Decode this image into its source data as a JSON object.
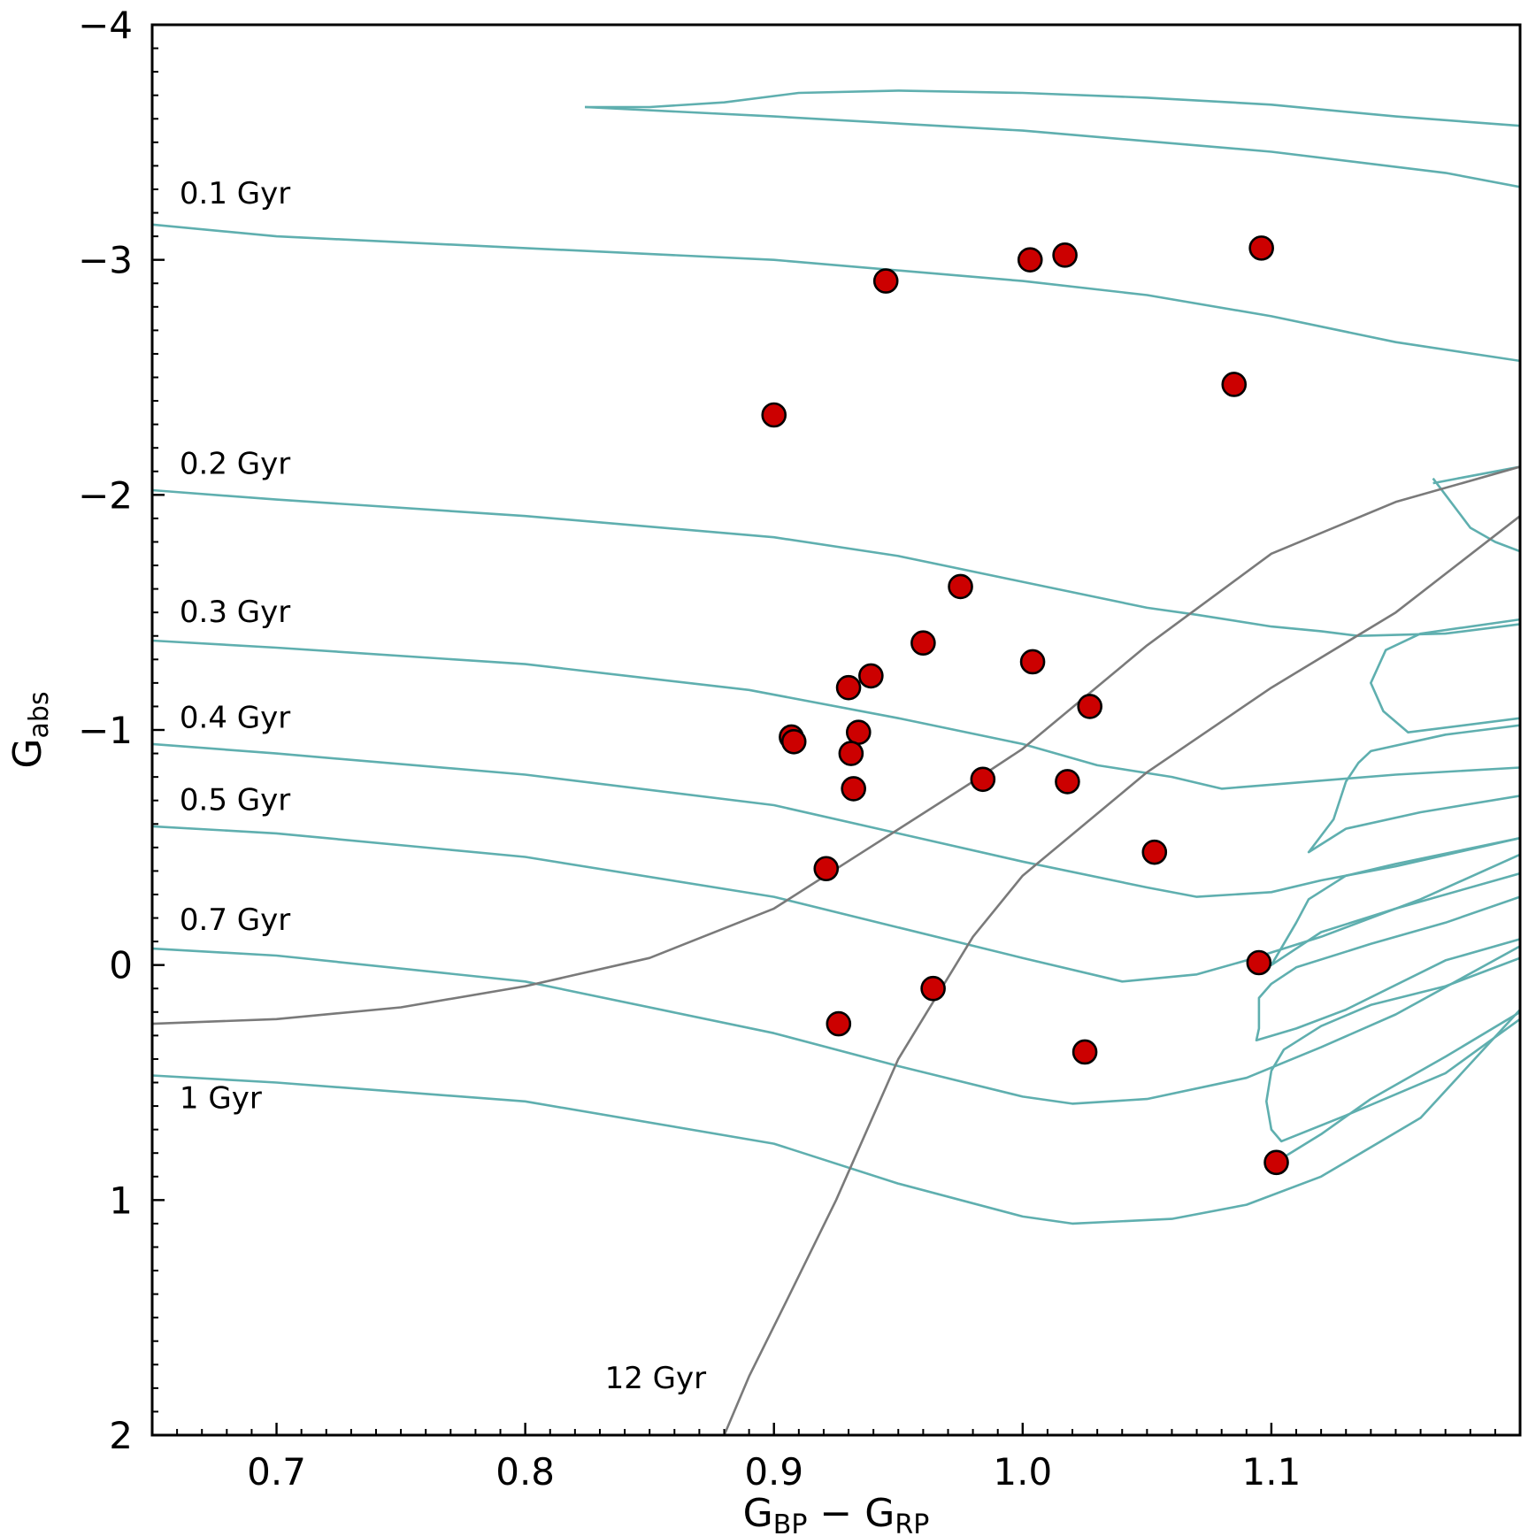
{
  "chart_data": {
    "type": "scatter",
    "title": "",
    "xlabel": {
      "main1": "G",
      "sub1": "BP",
      "minus": " − ",
      "main2": "G",
      "sub2": "RP"
    },
    "ylabel": {
      "main": "G",
      "sub": "abs"
    },
    "xlim": [
      0.65,
      1.2
    ],
    "ylim": [
      2,
      -4
    ],
    "y_inverted": true,
    "x_ticks": [
      0.7,
      0.8,
      0.9,
      1.0,
      1.1
    ],
    "x_tick_labels": [
      "0.7",
      "0.8",
      "0.9",
      "1.0",
      "1.1"
    ],
    "y_ticks": [
      -4,
      -3,
      -2,
      -1,
      0,
      1,
      2
    ],
    "y_tick_labels": [
      "−4",
      "−3",
      "−2",
      "−1",
      "0",
      "1",
      "2"
    ],
    "colors": {
      "isochrone": "#5fafaf",
      "old_isochrone": "#7a7a7a",
      "points": "#cc0000",
      "point_edge": "#000000"
    },
    "points": [
      {
        "x": 0.945,
        "y": -2.91
      },
      {
        "x": 1.003,
        "y": -3.0
      },
      {
        "x": 1.017,
        "y": -3.02
      },
      {
        "x": 1.096,
        "y": -3.05
      },
      {
        "x": 0.9,
        "y": -2.34
      },
      {
        "x": 1.085,
        "y": -2.47
      },
      {
        "x": 0.975,
        "y": -1.61
      },
      {
        "x": 0.96,
        "y": -1.37
      },
      {
        "x": 1.004,
        "y": -1.29
      },
      {
        "x": 0.939,
        "y": -1.23
      },
      {
        "x": 0.93,
        "y": -1.18
      },
      {
        "x": 1.027,
        "y": -1.1
      },
      {
        "x": 0.934,
        "y": -0.99
      },
      {
        "x": 0.907,
        "y": -0.97
      },
      {
        "x": 0.908,
        "y": -0.95
      },
      {
        "x": 0.931,
        "y": -0.9
      },
      {
        "x": 0.984,
        "y": -0.79
      },
      {
        "x": 1.018,
        "y": -0.78
      },
      {
        "x": 0.932,
        "y": -0.75
      },
      {
        "x": 1.053,
        "y": -0.48
      },
      {
        "x": 0.921,
        "y": -0.41
      },
      {
        "x": 1.095,
        "y": -0.01
      },
      {
        "x": 0.964,
        "y": 0.1
      },
      {
        "x": 0.926,
        "y": 0.25
      },
      {
        "x": 1.025,
        "y": 0.37
      },
      {
        "x": 1.102,
        "y": 0.84
      }
    ],
    "isochrones": [
      {
        "label": "0.1 Gyr",
        "label_pos": [
          0.661,
          -3.24
        ],
        "segments": [
          [
            [
              0.65,
              -3.15
            ],
            [
              0.7,
              -3.1
            ],
            [
              0.8,
              -3.05
            ],
            [
              0.9,
              -3.0
            ],
            [
              1.0,
              -2.91
            ],
            [
              1.05,
              -2.85
            ],
            [
              1.1,
              -2.76
            ],
            [
              1.15,
              -2.65
            ],
            [
              1.2,
              -2.57
            ]
          ],
          [
            [
              0.824,
              -3.65
            ],
            [
              0.85,
              -3.65
            ],
            [
              0.88,
              -3.67
            ],
            [
              0.91,
              -3.71
            ],
            [
              0.95,
              -3.72
            ],
            [
              1.0,
              -3.71
            ],
            [
              1.05,
              -3.69
            ],
            [
              1.1,
              -3.66
            ],
            [
              1.15,
              -3.61
            ],
            [
              1.2,
              -3.57
            ]
          ],
          [
            [
              0.824,
              -3.65
            ],
            [
              0.9,
              -3.61
            ],
            [
              1.0,
              -3.55
            ],
            [
              1.1,
              -3.46
            ],
            [
              1.17,
              -3.37
            ],
            [
              1.2,
              -3.31
            ]
          ]
        ]
      },
      {
        "label": "0.2 Gyr",
        "label_pos": [
          0.661,
          -2.09
        ],
        "segments": [
          [
            [
              0.65,
              -2.02
            ],
            [
              0.7,
              -1.98
            ],
            [
              0.8,
              -1.91
            ],
            [
              0.9,
              -1.82
            ],
            [
              0.95,
              -1.74
            ],
            [
              1.0,
              -1.63
            ],
            [
              1.05,
              -1.52
            ],
            [
              1.07,
              -1.49
            ],
            [
              1.1,
              -1.44
            ],
            [
              1.12,
              -1.42
            ],
            [
              1.135,
              -1.4
            ],
            [
              1.17,
              -1.41
            ],
            [
              1.2,
              -1.45
            ]
          ],
          [
            [
              1.165,
              -2.05
            ],
            [
              1.2,
              -2.12
            ],
            [
              1.175,
              -2.07
            ]
          ],
          [
            [
              1.165,
              -2.07
            ],
            [
              1.17,
              -2.0
            ],
            [
              1.18,
              -1.86
            ],
            [
              1.19,
              -1.8
            ],
            [
              1.2,
              -1.76
            ]
          ]
        ]
      },
      {
        "label": "0.3 Gyr",
        "label_pos": [
          0.661,
          -1.46
        ],
        "segments": [
          [
            [
              0.65,
              -1.38
            ],
            [
              0.7,
              -1.35
            ],
            [
              0.8,
              -1.28
            ],
            [
              0.89,
              -1.17
            ],
            [
              0.95,
              -1.05
            ],
            [
              1.0,
              -0.94
            ],
            [
              1.03,
              -0.85
            ],
            [
              1.06,
              -0.8
            ],
            [
              1.08,
              -0.75
            ],
            [
              1.15,
              -0.81
            ],
            [
              1.2,
              -0.84
            ]
          ],
          [
            [
              1.2,
              -1.47
            ],
            [
              1.16,
              -1.41
            ],
            [
              1.146,
              -1.34
            ],
            [
              1.14,
              -1.2
            ],
            [
              1.145,
              -1.08
            ],
            [
              1.155,
              -0.99
            ],
            [
              1.2,
              -1.05
            ]
          ]
        ]
      },
      {
        "label": "0.4 Gyr",
        "label_pos": [
          0.661,
          -1.01
        ],
        "segments": [
          [
            [
              0.65,
              -0.94
            ],
            [
              0.7,
              -0.9
            ],
            [
              0.8,
              -0.81
            ],
            [
              0.9,
              -0.68
            ],
            [
              0.95,
              -0.56
            ],
            [
              1.0,
              -0.44
            ],
            [
              1.05,
              -0.33
            ],
            [
              1.07,
              -0.29
            ],
            [
              1.1,
              -0.31
            ],
            [
              1.12,
              -0.36
            ],
            [
              1.15,
              -0.42
            ],
            [
              1.2,
              -0.54
            ]
          ],
          [
            [
              1.2,
              -1.02
            ],
            [
              1.17,
              -0.98
            ],
            [
              1.14,
              -0.91
            ],
            [
              1.135,
              -0.86
            ],
            [
              1.13,
              -0.78
            ],
            [
              1.125,
              -0.62
            ],
            [
              1.12,
              -0.55
            ],
            [
              1.115,
              -0.48
            ],
            [
              1.13,
              -0.58
            ],
            [
              1.16,
              -0.65
            ],
            [
              1.2,
              -0.72
            ]
          ]
        ]
      },
      {
        "label": "0.5 Gyr",
        "label_pos": [
          0.661,
          -0.66
        ],
        "segments": [
          [
            [
              0.65,
              -0.59
            ],
            [
              0.7,
              -0.56
            ],
            [
              0.8,
              -0.46
            ],
            [
              0.9,
              -0.29
            ],
            [
              0.95,
              -0.16
            ],
            [
              1.0,
              -0.03
            ],
            [
              1.04,
              0.07
            ],
            [
              1.07,
              0.04
            ],
            [
              1.09,
              -0.02
            ],
            [
              1.12,
              -0.12
            ],
            [
              1.16,
              -0.28
            ],
            [
              1.2,
              -0.47
            ]
          ],
          [
            [
              1.2,
              -0.54
            ],
            [
              1.15,
              -0.43
            ],
            [
              1.13,
              -0.38
            ],
            [
              1.115,
              -0.28
            ],
            [
              1.11,
              -0.18
            ],
            [
              1.1,
              0.0
            ],
            [
              1.12,
              -0.14
            ],
            [
              1.15,
              -0.24
            ],
            [
              1.2,
              -0.39
            ]
          ]
        ]
      },
      {
        "label": "0.7 Gyr",
        "label_pos": [
          0.661,
          -0.15
        ],
        "segments": [
          [
            [
              0.65,
              -0.07
            ],
            [
              0.7,
              -0.04
            ],
            [
              0.8,
              0.07
            ],
            [
              0.9,
              0.29
            ],
            [
              0.95,
              0.43
            ],
            [
              1.0,
              0.56
            ],
            [
              1.02,
              0.59
            ],
            [
              1.05,
              0.57
            ],
            [
              1.09,
              0.48
            ],
            [
              1.12,
              0.35
            ],
            [
              1.15,
              0.21
            ],
            [
              1.2,
              -0.08
            ]
          ],
          [
            [
              1.2,
              -0.29
            ],
            [
              1.17,
              -0.18
            ],
            [
              1.14,
              -0.09
            ],
            [
              1.11,
              0.01
            ],
            [
              1.1,
              0.08
            ],
            [
              1.095,
              0.14
            ],
            [
              1.095,
              0.27
            ],
            [
              1.094,
              0.32
            ],
            [
              1.11,
              0.27
            ],
            [
              1.13,
              0.19
            ],
            [
              1.17,
              -0.02
            ],
            [
              1.2,
              -0.11
            ]
          ],
          [
            [
              1.2,
              -0.03
            ],
            [
              1.17,
              0.09
            ],
            [
              1.14,
              0.17
            ],
            [
              1.12,
              0.26
            ],
            [
              1.105,
              0.36
            ],
            [
              1.1,
              0.45
            ],
            [
              1.098,
              0.58
            ],
            [
              1.1,
              0.7
            ],
            [
              1.104,
              0.75
            ],
            [
              1.13,
              0.64
            ],
            [
              1.17,
              0.46
            ],
            [
              1.2,
              0.23
            ]
          ]
        ]
      },
      {
        "label": "1 Gyr",
        "label_pos": [
          0.661,
          0.61
        ],
        "segments": [
          [
            [
              0.65,
              0.47
            ],
            [
              0.7,
              0.5
            ],
            [
              0.8,
              0.58
            ],
            [
              0.9,
              0.76
            ],
            [
              0.95,
              0.93
            ],
            [
              1.0,
              1.07
            ],
            [
              1.02,
              1.1
            ],
            [
              1.06,
              1.08
            ],
            [
              1.09,
              1.02
            ],
            [
              1.12,
              0.9
            ],
            [
              1.16,
              0.65
            ],
            [
              1.2,
              0.19
            ]
          ],
          [
            [
              1.2,
              0.2
            ],
            [
              1.17,
              0.39
            ],
            [
              1.14,
              0.57
            ],
            [
              1.12,
              0.72
            ],
            [
              1.1,
              0.85
            ]
          ]
        ]
      }
    ],
    "old_isochrones": [
      {
        "label": "",
        "segments": [
          [
            [
              0.65,
              0.25
            ],
            [
              0.7,
              0.23
            ],
            [
              0.75,
              0.18
            ],
            [
              0.8,
              0.09
            ],
            [
              0.85,
              -0.03
            ],
            [
              0.9,
              -0.24
            ],
            [
              0.94,
              -0.51
            ],
            [
              0.98,
              -0.78
            ],
            [
              1.0,
              -0.92
            ],
            [
              1.05,
              -1.36
            ],
            [
              1.1,
              -1.75
            ],
            [
              1.15,
              -1.97
            ],
            [
              1.2,
              -2.12
            ]
          ]
        ]
      },
      {
        "label": "12 Gyr",
        "label_pos": [
          0.832,
          1.8
        ],
        "segments": [
          [
            [
              0.88,
              2.0
            ],
            [
              0.89,
              1.75
            ],
            [
              0.905,
              1.43
            ],
            [
              0.925,
              1.0
            ],
            [
              0.95,
              0.4
            ],
            [
              0.98,
              -0.12
            ],
            [
              1.0,
              -0.38
            ],
            [
              1.05,
              -0.82
            ],
            [
              1.1,
              -1.18
            ],
            [
              1.15,
              -1.5
            ],
            [
              1.2,
              -1.91
            ]
          ]
        ]
      }
    ]
  }
}
